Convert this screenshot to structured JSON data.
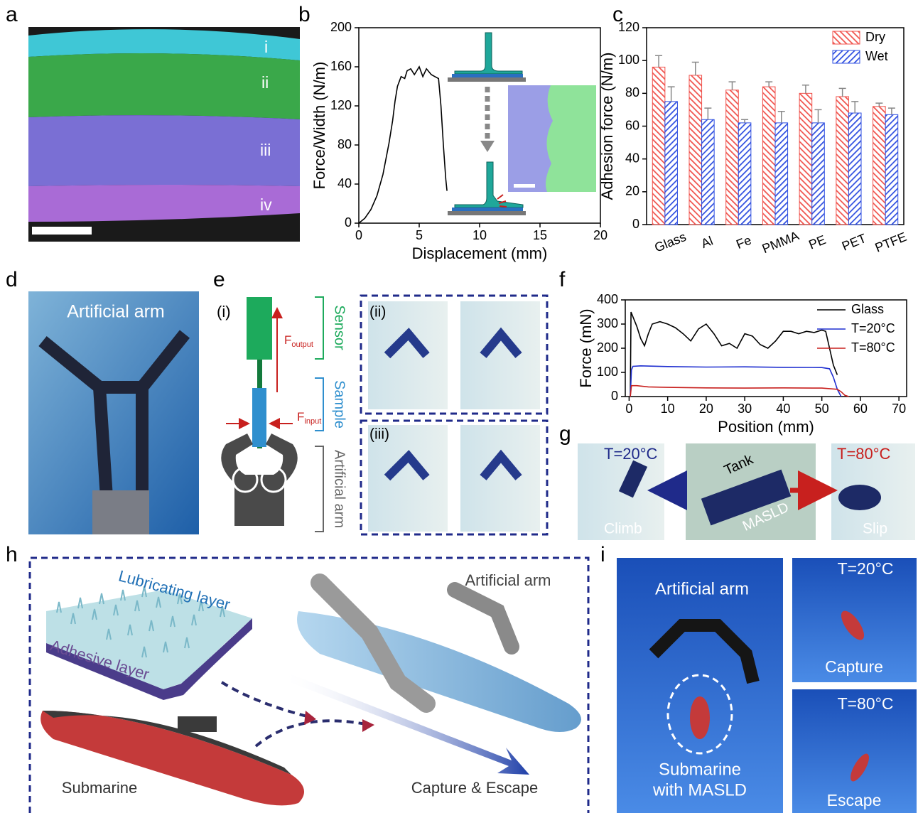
{
  "panel_labels": [
    "a",
    "b",
    "c",
    "d",
    "e",
    "f",
    "g",
    "h",
    "i"
  ],
  "panel_a": {
    "layers": [
      "i",
      "ii",
      "iii",
      "iv"
    ]
  },
  "chart_data": [
    {
      "type": "line",
      "xlabel": "Displacement (mm)",
      "ylabel": "Force/Width (N/m)",
      "xlim": [
        0,
        20
      ],
      "xticks": [
        0,
        5,
        10,
        15,
        20
      ],
      "ylim": [
        0,
        200
      ],
      "yticks": [
        0,
        40,
        80,
        120,
        160,
        200
      ],
      "color": "#000000",
      "x": [
        0,
        0.5,
        1,
        1.5,
        2,
        2.5,
        2.8,
        3,
        3.2,
        3.5,
        3.8,
        4,
        4.3,
        4.6,
        5,
        5.3,
        5.6,
        6,
        6.3,
        6.6,
        6.8,
        7,
        7.2,
        7.3
      ],
      "values": [
        0,
        5,
        14,
        28,
        50,
        82,
        105,
        125,
        140,
        150,
        148,
        156,
        158,
        152,
        160,
        150,
        158,
        152,
        150,
        148,
        120,
        80,
        45,
        33
      ]
    },
    {
      "type": "bar",
      "ylabel": "Adhesion force (N/m)",
      "categories": [
        "Glass",
        "Al",
        "Fe",
        "PMMA",
        "PE",
        "PET",
        "PTFE"
      ],
      "ylim": [
        0,
        120
      ],
      "yticks": [
        0,
        20,
        40,
        60,
        80,
        100,
        120
      ],
      "legend": "upper right",
      "series": [
        {
          "name": "Dry",
          "color": "#f0524c",
          "values": [
            96,
            91,
            82,
            84,
            80,
            78,
            72
          ],
          "errors": [
            7,
            8,
            5,
            3,
            5,
            5,
            2
          ]
        },
        {
          "name": "Wet",
          "color": "#2f4fe0",
          "values": [
            75,
            64,
            62,
            62,
            62,
            68,
            67
          ],
          "errors": [
            9,
            7,
            2,
            7,
            8,
            7,
            4
          ]
        }
      ]
    },
    {
      "type": "line",
      "xlabel": "Position (mm)",
      "ylabel": "Force (mN)",
      "xlim": [
        -1,
        72
      ],
      "xticks": [
        0,
        10,
        20,
        30,
        40,
        50,
        60,
        70
      ],
      "ylim": [
        0,
        400
      ],
      "yticks": [
        0,
        100,
        200,
        300,
        400
      ],
      "legend": "upper right",
      "series": [
        {
          "name": "Glass",
          "color": "#000000",
          "x": [
            0.3,
            0.5,
            1,
            2,
            3,
            4,
            5,
            6,
            8,
            10,
            12,
            14,
            16,
            18,
            20,
            22,
            24,
            26,
            28,
            30,
            32,
            34,
            36,
            38,
            40,
            42,
            44,
            46,
            48,
            50,
            51,
            52,
            53,
            54
          ],
          "values": [
            0,
            350,
            330,
            290,
            240,
            210,
            260,
            300,
            310,
            300,
            285,
            260,
            230,
            280,
            300,
            260,
            210,
            220,
            200,
            260,
            250,
            215,
            200,
            230,
            270,
            270,
            260,
            270,
            265,
            275,
            270,
            200,
            130,
            90
          ]
        },
        {
          "name": "T=20°C",
          "color": "#1f2fd0",
          "x": [
            0.3,
            0.6,
            1,
            3,
            10,
            20,
            30,
            40,
            50,
            52,
            53,
            54,
            55
          ],
          "values": [
            0,
            110,
            125,
            127,
            124,
            122,
            123,
            121,
            120,
            115,
            80,
            30,
            0
          ]
        },
        {
          "name": "T=80°C",
          "color": "#c8201e",
          "x": [
            0.3,
            0.6,
            2,
            5,
            10,
            20,
            30,
            40,
            50,
            54,
            55,
            56,
            57
          ],
          "values": [
            0,
            45,
            45,
            40,
            38,
            36,
            35,
            36,
            35,
            30,
            20,
            5,
            0
          ]
        }
      ]
    }
  ],
  "panel_d": {
    "label": "Artificial arm"
  },
  "panel_e": {
    "sub_labels": [
      "(i)",
      "(ii)",
      "(iii)"
    ],
    "sensor": "Sensor",
    "sample": "Sample",
    "arm": "Artificial arm",
    "f_output": [
      "F",
      "output"
    ],
    "f_input": [
      "F",
      "input"
    ]
  },
  "panel_g": {
    "t_low": "T=20°C",
    "t_high": "T=80°C",
    "tank": "Tank",
    "climb": "Climb",
    "masld": "MASLD",
    "slip": "Slip"
  },
  "panel_h": {
    "lubricating": "Lubricating layer",
    "adhesive": "Adhesive layer",
    "arm": "Artificial arm",
    "submarine": "Submarine",
    "capture": "Capture & Escape"
  },
  "panel_i": {
    "arm": "Artificial arm",
    "submarine": [
      "Submarine",
      "with MASLD"
    ],
    "t_low": "T=20°C",
    "capture": "Capture",
    "t_high": "T=80°C",
    "escape": "Escape"
  }
}
